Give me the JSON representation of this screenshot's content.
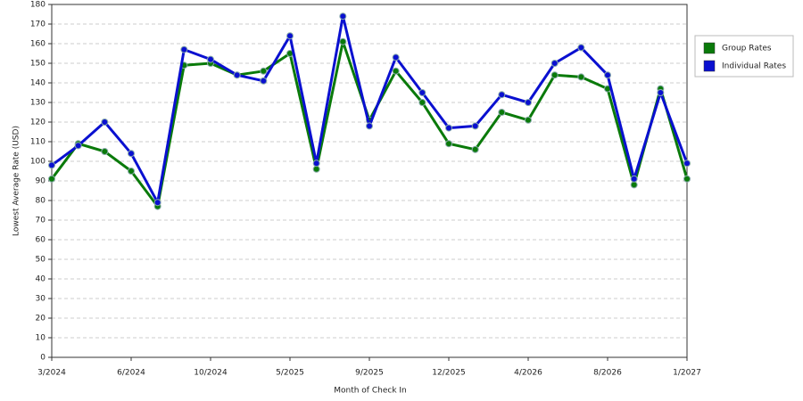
{
  "chart_data": {
    "type": "line",
    "x_label": "Month of Check In",
    "y_label": "Lowest Average Rate (USD)",
    "categories": [
      "3/2024",
      null,
      null,
      "6/2024",
      null,
      null,
      "10/2024",
      null,
      null,
      "5/2025",
      null,
      null,
      "9/2025",
      null,
      null,
      "12/2025",
      null,
      null,
      "4/2026",
      null,
      null,
      "8/2026",
      null,
      null,
      "1/2027"
    ],
    "series": [
      {
        "name": "Group Rates",
        "color": "#0a7a0a",
        "values": [
          91,
          109,
          105,
          95,
          77,
          149,
          150,
          144,
          146,
          155,
          96,
          161,
          121,
          146,
          130,
          109,
          106,
          125,
          121,
          144,
          143,
          137,
          88,
          137,
          91
        ]
      },
      {
        "name": "Individual Rates",
        "color": "#0a10d0",
        "values": [
          98,
          108,
          120,
          104,
          79,
          157,
          152,
          144,
          141,
          164,
          99,
          174,
          118,
          153,
          135,
          117,
          118,
          134,
          130,
          150,
          158,
          144,
          91,
          135,
          99
        ]
      }
    ],
    "ylim": [
      0,
      180
    ],
    "yticks": [
      0,
      10,
      20,
      30,
      40,
      50,
      60,
      70,
      80,
      90,
      100,
      110,
      120,
      130,
      140,
      150,
      160,
      170,
      180
    ],
    "grid": true,
    "legend": "right"
  }
}
